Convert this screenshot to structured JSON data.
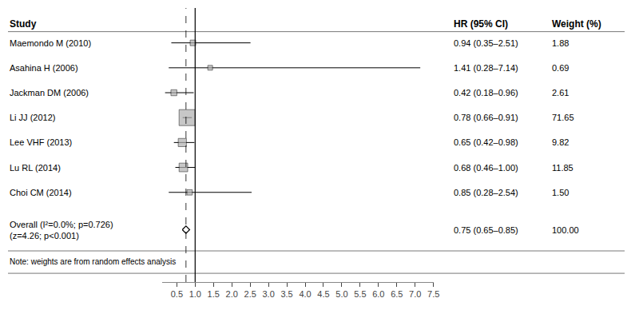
{
  "chart_data": {
    "type": "forest",
    "categories": [
      "Maemondo M (2010)",
      "Asahina H (2006)",
      "Jackman DM (2006)",
      "Li JJ (2012)",
      "Lee VHF (2013)",
      "Lu RL (2014)",
      "Choi CM (2014)"
    ],
    "values": [
      0.94,
      1.41,
      0.42,
      0.78,
      0.65,
      0.68,
      0.85
    ],
    "ci_low": [
      0.35,
      0.28,
      0.18,
      0.66,
      0.42,
      0.46,
      0.28
    ],
    "ci_high": [
      2.51,
      7.14,
      0.96,
      0.91,
      0.98,
      1.0,
      2.54
    ],
    "value_labels": [
      "0.94 (0.35–2.51)",
      "1.41 (0.28–7.14)",
      "0.42 (0.18–0.96)",
      "0.78 (0.66–0.91)",
      "0.65 (0.42–0.98)",
      "0.68 (0.46–1.00)",
      "0.85 (0.28–2.54)"
    ],
    "weights": [
      1.88,
      0.69,
      2.61,
      71.65,
      9.82,
      11.85,
      1.5
    ],
    "weight_labels": [
      "1.88",
      "0.69",
      "2.61",
      "71.65",
      "9.82",
      "11.85",
      "1.50"
    ],
    "color": "#b0b0b0",
    "headers": [
      "Study",
      "HR (95% CI)",
      "Weight (%)"
    ],
    "overall": {
      "labels": [
        "Overall (I²=0.0%; p=0.726)",
        "(z=4.26; p<0.001)"
      ],
      "value": 0.75,
      "ci_low": 0.65,
      "ci_high": 0.85,
      "value_label": "0.75 (0.65–0.85)",
      "weight": 100,
      "weight_label": "100.00"
    },
    "ref_line": 1.0,
    "dashed_line": 0.75,
    "annotations": [
      "Note: weights are from random effects analysis"
    ],
    "xlim": [
      0.1,
      7.5
    ],
    "xticks": [
      0.5,
      {
        "value": 1,
        "label": "1.0"
      },
      1.5,
      {
        "value": 2,
        "label": "2.0"
      },
      2.5,
      {
        "value": 3,
        "label": "3.0"
      },
      3.5,
      {
        "value": 4,
        "label": "4.0"
      },
      4.5,
      {
        "value": 5,
        "label": "5.0"
      },
      5.5,
      {
        "value": 6,
        "label": "6.0"
      },
      6.5,
      {
        "value": 7,
        "label": "7.0"
      },
      7.5
    ],
    "grid": false,
    "tick_labels": "x"
  }
}
